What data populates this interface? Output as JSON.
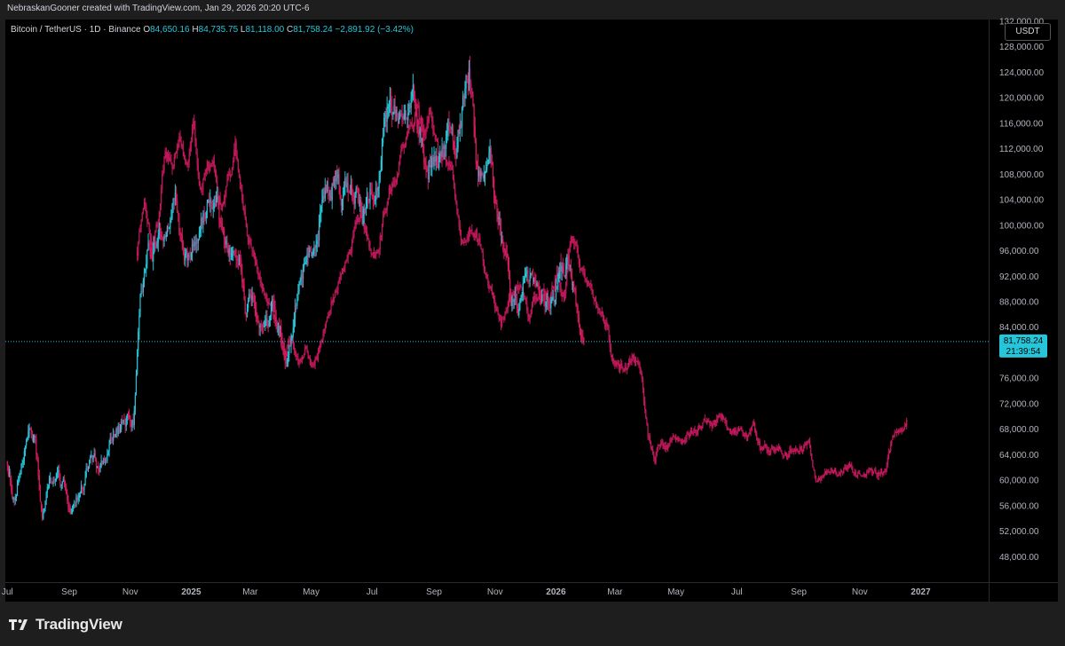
{
  "header": {
    "attribution": "NebraskanGooner created with TradingView.com, Jan 29, 2026 20:20 UTC-6"
  },
  "legend": {
    "symbol": "Bitcoin / TetherUS · 1D · Binance",
    "open_label": "O",
    "open": "84,650.16",
    "high_label": "H",
    "high": "84,735.75",
    "low_label": "L",
    "low": "81,118.00",
    "close_label": "C",
    "close": "81,758.24",
    "change": "−2,891.92 (−3.42%)"
  },
  "currency_button": "USDT",
  "price_tag": {
    "price": "81,758.24",
    "countdown": "21:39:54"
  },
  "colors": {
    "up": "#26c6da",
    "down": "#d81b60",
    "projection": "#c2185b",
    "tag": "#26c6da",
    "background": "#000000"
  },
  "brand": {
    "name": "TradingView",
    "icon": "tradingview-logo-icon"
  },
  "chart_data": {
    "type": "candlestick",
    "y_axis": {
      "range": [
        44000,
        132000
      ],
      "ticks": [
        48000,
        52000,
        56000,
        60000,
        64000,
        68000,
        72000,
        76000,
        80000,
        84000,
        88000,
        92000,
        96000,
        100000,
        104000,
        108000,
        112000,
        116000,
        120000,
        124000,
        128000
      ],
      "tick_labels": [
        "48,000.00",
        "52,000.00",
        "56,000.00",
        "60,000.00",
        "64,000.00",
        "68,000.00",
        "72,000.00",
        "76,000.00",
        "80,000.00",
        "84,000.00",
        "88,000.00",
        "92,000.00",
        "96,000.00",
        "100,000.00",
        "104,000.00",
        "108,000.00",
        "112,000.00",
        "116,000.00",
        "120,000.00",
        "124,000.00",
        "128,000.00"
      ],
      "partial_top_label": "132,000.00"
    },
    "x_axis": {
      "range": [
        "2024-06-29",
        "2027-03-10"
      ],
      "ticks": [
        {
          "date": "2024-07-01",
          "label": "Jul"
        },
        {
          "date": "2024-09-01",
          "label": "Sep"
        },
        {
          "date": "2024-11-01",
          "label": "Nov"
        },
        {
          "date": "2025-01-01",
          "label": "2025"
        },
        {
          "date": "2025-03-01",
          "label": "Mar"
        },
        {
          "date": "2025-05-01",
          "label": "May"
        },
        {
          "date": "2025-07-01",
          "label": "Jul"
        },
        {
          "date": "2025-09-01",
          "label": "Sep"
        },
        {
          "date": "2025-11-01",
          "label": "Nov"
        },
        {
          "date": "2026-01-01",
          "label": "2026"
        },
        {
          "date": "2026-03-01",
          "label": "Mar"
        },
        {
          "date": "2026-05-01",
          "label": "May"
        },
        {
          "date": "2026-07-01",
          "label": "Jul"
        },
        {
          "date": "2026-09-01",
          "label": "Sep"
        },
        {
          "date": "2026-11-01",
          "label": "Nov"
        },
        {
          "date": "2027-01-01",
          "label": "2027"
        }
      ]
    },
    "current_price": 81758.24,
    "series": [
      {
        "name": "BTC/USDT",
        "path": [
          [
            "2024-07-01",
            63000
          ],
          [
            "2024-07-08",
            57000
          ],
          [
            "2024-07-15",
            63000
          ],
          [
            "2024-07-22",
            68000
          ],
          [
            "2024-07-29",
            66000
          ],
          [
            "2024-08-05",
            54000
          ],
          [
            "2024-08-12",
            60000
          ],
          [
            "2024-08-19",
            61000
          ],
          [
            "2024-08-26",
            59000
          ],
          [
            "2024-09-02",
            55000
          ],
          [
            "2024-09-09",
            57500
          ],
          [
            "2024-09-16",
            60000
          ],
          [
            "2024-09-23",
            64000
          ],
          [
            "2024-09-30",
            62000
          ],
          [
            "2024-10-07",
            63000
          ],
          [
            "2024-10-14",
            66500
          ],
          [
            "2024-10-21",
            68000
          ],
          [
            "2024-10-28",
            70000
          ],
          [
            "2024-11-04",
            69000
          ],
          [
            "2024-11-11",
            88000
          ],
          [
            "2024-11-18",
            95000
          ],
          [
            "2024-11-25",
            96000
          ],
          [
            "2024-12-02",
            98000
          ],
          [
            "2024-12-09",
            101000
          ],
          [
            "2024-12-16",
            104000
          ],
          [
            "2024-12-23",
            95000
          ],
          [
            "2024-12-30",
            94000
          ],
          [
            "2025-01-06",
            97000
          ],
          [
            "2025-01-13",
            101000
          ],
          [
            "2025-01-20",
            104000
          ],
          [
            "2025-01-27",
            102000
          ],
          [
            "2025-02-03",
            97000
          ],
          [
            "2025-02-10",
            96000
          ],
          [
            "2025-02-17",
            97000
          ],
          [
            "2025-02-24",
            86000
          ],
          [
            "2025-03-03",
            88000
          ],
          [
            "2025-03-10",
            81000
          ],
          [
            "2025-03-17",
            84000
          ],
          [
            "2025-03-24",
            87000
          ],
          [
            "2025-03-31",
            83000
          ],
          [
            "2025-04-07",
            78000
          ],
          [
            "2025-04-14",
            84000
          ],
          [
            "2025-04-21",
            93000
          ],
          [
            "2025-04-28",
            95000
          ],
          [
            "2025-05-05",
            97000
          ],
          [
            "2025-05-12",
            103000
          ],
          [
            "2025-05-19",
            106000
          ],
          [
            "2025-05-26",
            108000
          ],
          [
            "2025-06-02",
            104000
          ],
          [
            "2025-06-09",
            107000
          ],
          [
            "2025-06-16",
            104000
          ],
          [
            "2025-06-23",
            101000
          ],
          [
            "2025-06-30",
            107000
          ],
          [
            "2025-07-07",
            108000
          ],
          [
            "2025-07-14",
            119000
          ],
          [
            "2025-07-21",
            118000
          ],
          [
            "2025-07-28",
            115000
          ],
          [
            "2025-08-04",
            114000
          ],
          [
            "2025-08-11",
            122000
          ],
          [
            "2025-08-18",
            115000
          ],
          [
            "2025-08-25",
            110000
          ],
          [
            "2025-09-01",
            109000
          ],
          [
            "2025-09-08",
            112000
          ],
          [
            "2025-09-15",
            116000
          ],
          [
            "2025-09-22",
            110000
          ],
          [
            "2025-09-29",
            118000
          ],
          [
            "2025-10-06",
            124000
          ],
          [
            "2025-10-13",
            110000
          ],
          [
            "2025-10-20",
            108000
          ],
          [
            "2025-10-27",
            111000
          ],
          [
            "2025-11-03",
            101000
          ],
          [
            "2025-11-10",
            96000
          ],
          [
            "2025-11-17",
            88000
          ],
          [
            "2025-11-24",
            87000
          ],
          [
            "2025-12-01",
            91000
          ],
          [
            "2025-12-08",
            92000
          ],
          [
            "2025-12-15",
            88000
          ],
          [
            "2025-12-22",
            87500
          ],
          [
            "2025-12-29",
            88000
          ],
          [
            "2026-01-05",
            92000
          ],
          [
            "2026-01-12",
            95000
          ],
          [
            "2026-01-19",
            89000
          ],
          [
            "2026-01-26",
            84000
          ],
          [
            "2026-01-29",
            81758
          ]
        ]
      },
      {
        "name": "",
        "path": [
          [
            "2024-11-08",
            96000
          ],
          [
            "2024-11-15",
            104000
          ],
          [
            "2024-11-22",
            97000
          ],
          [
            "2024-11-29",
            100000
          ],
          [
            "2024-12-06",
            112000
          ],
          [
            "2024-12-13",
            108000
          ],
          [
            "2024-12-20",
            113000
          ],
          [
            "2024-12-27",
            109000
          ],
          [
            "2025-01-03",
            115000
          ],
          [
            "2025-01-10",
            105000
          ],
          [
            "2025-01-17",
            110000
          ],
          [
            "2025-01-24",
            108000
          ],
          [
            "2025-01-31",
            103000
          ],
          [
            "2025-02-07",
            107000
          ],
          [
            "2025-02-14",
            112000
          ],
          [
            "2025-02-21",
            103000
          ],
          [
            "2025-02-28",
            98000
          ],
          [
            "2025-03-07",
            93000
          ],
          [
            "2025-03-14",
            90000
          ],
          [
            "2025-03-21",
            87000
          ],
          [
            "2025-03-28",
            84000
          ],
          [
            "2025-04-04",
            80000
          ],
          [
            "2025-04-11",
            82000
          ],
          [
            "2025-04-18",
            79000
          ],
          [
            "2025-04-25",
            81000
          ],
          [
            "2025-05-02",
            77500
          ],
          [
            "2025-05-09",
            80000
          ],
          [
            "2025-05-16",
            85000
          ],
          [
            "2025-05-23",
            89000
          ],
          [
            "2025-05-30",
            91000
          ],
          [
            "2025-06-06",
            94000
          ],
          [
            "2025-06-13",
            99000
          ],
          [
            "2025-06-20",
            102000
          ],
          [
            "2025-06-27",
            98000
          ],
          [
            "2025-07-04",
            95000
          ],
          [
            "2025-07-11",
            100000
          ],
          [
            "2025-07-18",
            106000
          ],
          [
            "2025-07-25",
            108000
          ],
          [
            "2025-08-01",
            112000
          ],
          [
            "2025-08-08",
            114000
          ],
          [
            "2025-08-15",
            120000
          ],
          [
            "2025-08-22",
            113000
          ],
          [
            "2025-08-29",
            118000
          ],
          [
            "2025-09-05",
            111000
          ],
          [
            "2025-09-12",
            110000
          ],
          [
            "2025-09-19",
            107000
          ],
          [
            "2025-09-26",
            100000
          ],
          [
            "2025-10-03",
            97000
          ],
          [
            "2025-10-10",
            100000
          ],
          [
            "2025-10-17",
            97000
          ],
          [
            "2025-10-24",
            91000
          ],
          [
            "2025-10-31",
            88000
          ],
          [
            "2025-11-07",
            84000
          ],
          [
            "2025-11-14",
            87000
          ],
          [
            "2025-11-21",
            90000
          ],
          [
            "2025-11-28",
            89000
          ],
          [
            "2025-12-05",
            86000
          ],
          [
            "2025-12-12",
            88000
          ],
          [
            "2025-12-19",
            90000
          ],
          [
            "2025-12-26",
            88000
          ],
          [
            "2026-01-02",
            92000
          ],
          [
            "2026-01-09",
            89000
          ],
          [
            "2026-01-16",
            98000
          ],
          [
            "2026-01-23",
            95000
          ],
          [
            "2026-01-30",
            92000
          ],
          [
            "2026-02-06",
            89000
          ],
          [
            "2026-02-13",
            87000
          ],
          [
            "2026-02-20",
            85000
          ],
          [
            "2026-02-27",
            78000
          ],
          [
            "2026-03-06",
            77000
          ],
          [
            "2026-03-13",
            78000
          ],
          [
            "2026-03-20",
            79000
          ],
          [
            "2026-03-27",
            77000
          ],
          [
            "2026-04-03",
            67000
          ],
          [
            "2026-04-10",
            64000
          ],
          [
            "2026-04-17",
            66000
          ],
          [
            "2026-04-24",
            65000
          ],
          [
            "2026-05-01",
            66500
          ],
          [
            "2026-05-08",
            65500
          ],
          [
            "2026-05-15",
            67000
          ],
          [
            "2026-05-22",
            68000
          ],
          [
            "2026-05-29",
            69000
          ],
          [
            "2026-06-05",
            68000
          ],
          [
            "2026-06-12",
            69500
          ],
          [
            "2026-06-19",
            70000
          ],
          [
            "2026-06-26",
            67000
          ],
          [
            "2026-07-03",
            67500
          ],
          [
            "2026-07-10",
            67000
          ],
          [
            "2026-07-17",
            68000
          ],
          [
            "2026-07-24",
            65500
          ],
          [
            "2026-07-31",
            65000
          ],
          [
            "2026-08-07",
            64500
          ],
          [
            "2026-08-14",
            65000
          ],
          [
            "2026-08-21",
            64500
          ],
          [
            "2026-08-28",
            65000
          ],
          [
            "2026-09-04",
            65500
          ],
          [
            "2026-09-11",
            65200
          ],
          [
            "2026-09-18",
            60500
          ],
          [
            "2026-09-25",
            60200
          ],
          [
            "2026-10-02",
            61000
          ],
          [
            "2026-10-09",
            61200
          ],
          [
            "2026-10-16",
            61500
          ],
          [
            "2026-10-23",
            62000
          ],
          [
            "2026-10-30",
            61000
          ],
          [
            "2026-11-06",
            61200
          ],
          [
            "2026-11-13",
            61000
          ],
          [
            "2026-11-20",
            61300
          ],
          [
            "2026-11-27",
            62000
          ],
          [
            "2026-12-04",
            66500
          ],
          [
            "2026-12-11",
            68000
          ],
          [
            "2026-12-18",
            69500
          ]
        ]
      }
    ]
  }
}
